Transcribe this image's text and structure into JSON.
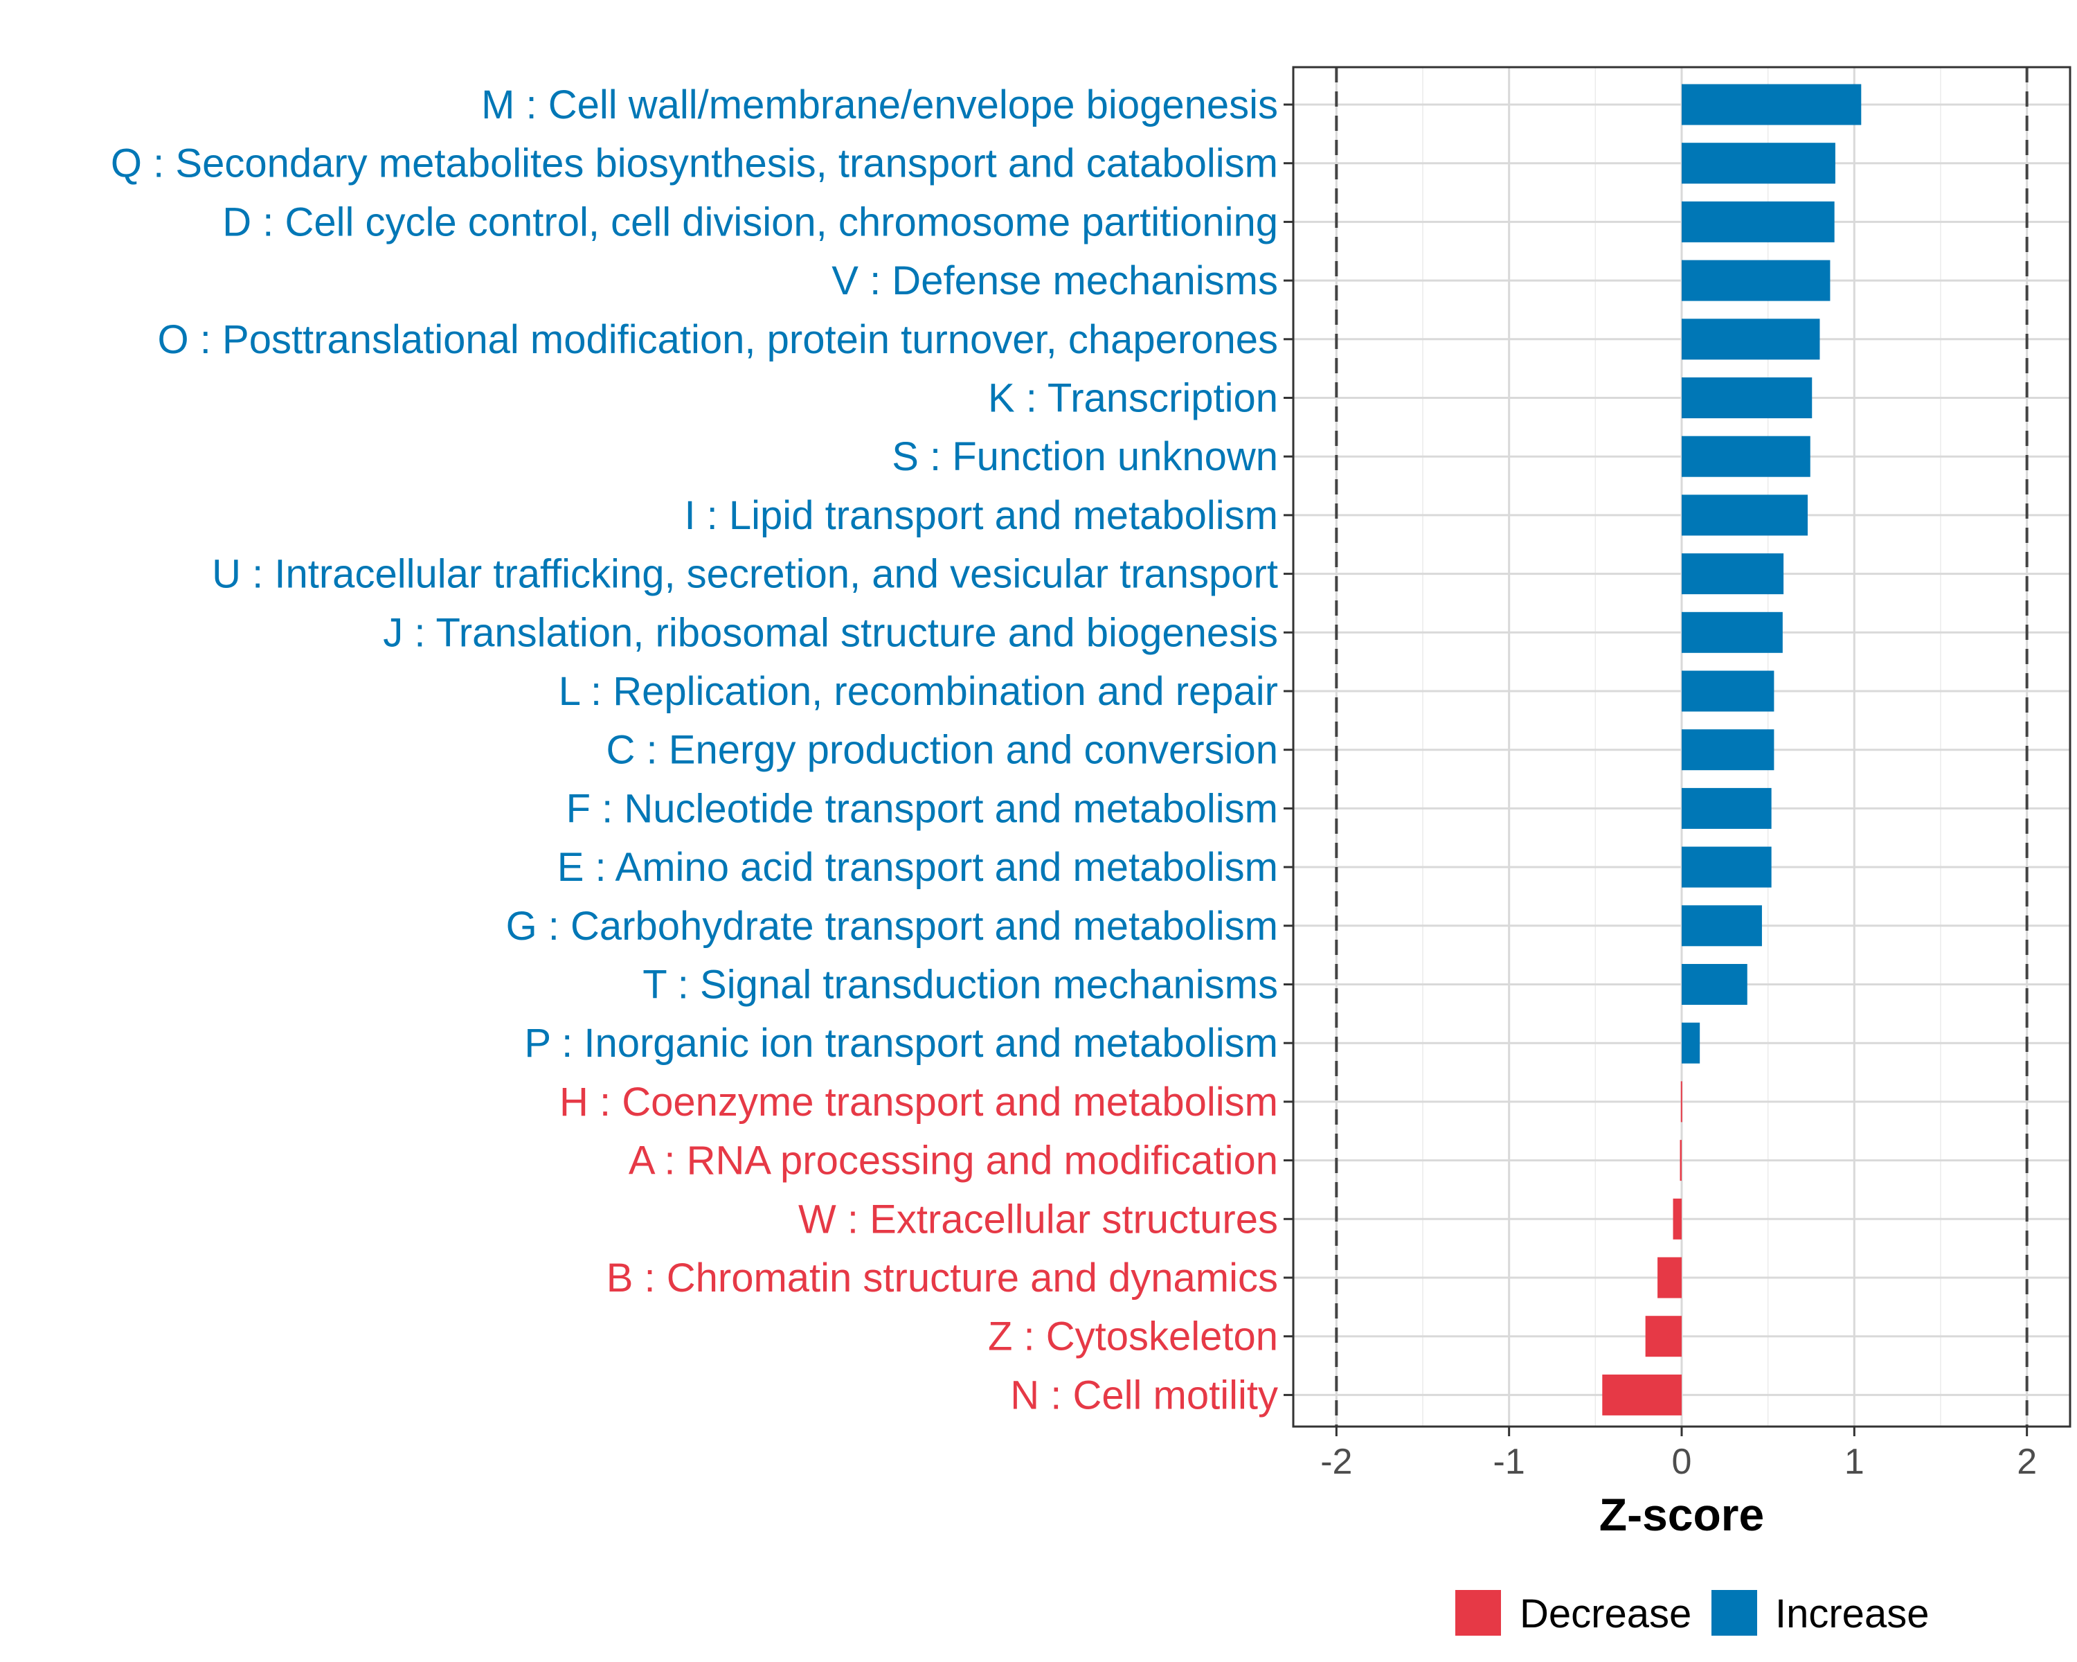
{
  "chart_data": {
    "type": "bar",
    "orientation": "horizontal",
    "categories": [
      "M : Cell wall/membrane/envelope biogenesis",
      "Q : Secondary metabolites biosynthesis, transport and catabolism",
      "D : Cell cycle control, cell division, chromosome partitioning",
      "V : Defense mechanisms",
      "O : Posttranslational modification, protein turnover, chaperones",
      "K : Transcription",
      "S : Function unknown",
      "I : Lipid transport and metabolism",
      "U : Intracellular trafficking, secretion, and vesicular transport",
      "J : Translation, ribosomal structure and biogenesis",
      "L : Replication, recombination and repair",
      "C : Energy production and conversion",
      "F : Nucleotide transport and metabolism",
      "E : Amino acid transport and metabolism",
      "G : Carbohydrate transport and metabolism",
      "T : Signal transduction mechanisms",
      "P : Inorganic ion transport and metabolism",
      "H : Coenzyme transport and metabolism",
      "A : RNA processing and modification",
      "W : Extracellular structures",
      "B : Chromatin structure and dynamics",
      "Z : Cytoskeleton",
      "N : Cell motility"
    ],
    "values": [
      1.04,
      0.89,
      0.885,
      0.86,
      0.8,
      0.755,
      0.745,
      0.73,
      0.59,
      0.585,
      0.535,
      0.535,
      0.52,
      0.52,
      0.465,
      0.38,
      0.105,
      -0.005,
      -0.01,
      -0.05,
      -0.14,
      -0.21,
      -0.46
    ],
    "groups": [
      "Increase",
      "Increase",
      "Increase",
      "Increase",
      "Increase",
      "Increase",
      "Increase",
      "Increase",
      "Increase",
      "Increase",
      "Increase",
      "Increase",
      "Increase",
      "Increase",
      "Increase",
      "Increase",
      "Increase",
      "Decrease",
      "Decrease",
      "Decrease",
      "Decrease",
      "Decrease",
      "Decrease"
    ],
    "xlabel": "Z-score",
    "ylabel": "",
    "xlim": [
      -2.25,
      2.25
    ],
    "xticks": [
      -2,
      -1,
      0,
      1,
      2
    ],
    "xtick_labels": [
      "-2",
      "-1",
      "0",
      "1",
      "2"
    ],
    "threshold_lines": [
      -2,
      2
    ],
    "grid": true,
    "legend": {
      "position": "bottom",
      "entries": [
        {
          "label": "Decrease",
          "color": "#E63946"
        },
        {
          "label": "Increase",
          "color": "#0077B6"
        }
      ]
    },
    "colors": {
      "Decrease": "#E63946",
      "Increase": "#0077B6",
      "grid": "#D9D9D9",
      "threshold": "#444444"
    }
  }
}
